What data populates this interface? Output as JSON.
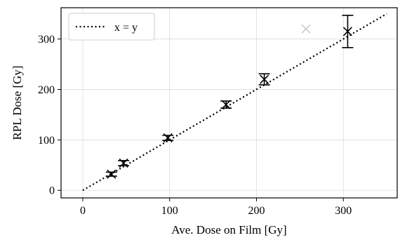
{
  "chart_data": {
    "type": "scatter",
    "xlabel": "Ave. Dose on Film [Gy]",
    "ylabel": "RPL Dose [Gy]",
    "xlim": [
      -25,
      362
    ],
    "ylim": [
      -15,
      362
    ],
    "x_ticks": [
      0,
      100,
      200,
      300
    ],
    "y_ticks": [
      0,
      100,
      200,
      300
    ],
    "grid": true,
    "legend_position": "top-left",
    "series": [
      {
        "name": "x = y",
        "kind": "line",
        "style": "dotted",
        "color": "#000000",
        "x": [
          0,
          350
        ],
        "y": [
          0,
          350
        ]
      },
      {
        "kind": "errorbar",
        "marker": "x",
        "color": "#000000",
        "points": [
          {
            "x": 33,
            "y": 32,
            "err": 4
          },
          {
            "x": 47,
            "y": 54,
            "err": 5
          },
          {
            "x": 98,
            "y": 104,
            "err": 5
          },
          {
            "x": 165,
            "y": 170,
            "err": 7
          },
          {
            "x": 209,
            "y": 220,
            "err": 11
          },
          {
            "x": 305,
            "y": 315,
            "err": 32
          }
        ]
      },
      {
        "kind": "marker",
        "marker": "x",
        "color": "#cccccc",
        "points": [
          {
            "x": 257,
            "y": 320
          }
        ]
      }
    ]
  }
}
